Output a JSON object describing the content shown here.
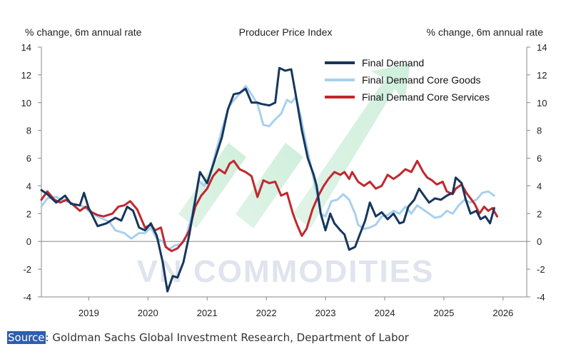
{
  "chart_data": {
    "type": "line",
    "title": "Producer Price Index",
    "ylabel_left": "% change, 6m annual rate",
    "ylabel_right": "% change, 6m annual rate",
    "xlim": [
      2018.2,
      2026.4
    ],
    "ylim": [
      -4,
      14
    ],
    "y_ticks": [
      -4,
      -2,
      0,
      2,
      4,
      6,
      8,
      10,
      12,
      14
    ],
    "x_ticks": [
      2019,
      2020,
      2021,
      2022,
      2023,
      2024,
      2025,
      2026
    ],
    "x_tick_labels": [
      "2019",
      "2020",
      "2021",
      "2022",
      "2023",
      "2024",
      "2025",
      "2026"
    ],
    "grid": false,
    "zero_line": true,
    "legend_position": "top-center",
    "series": [
      {
        "name": "Final Demand",
        "color": "#16365c",
        "points": [
          [
            2018.2,
            3.7
          ],
          [
            2018.3,
            3.4
          ],
          [
            2018.45,
            2.8
          ],
          [
            2018.6,
            3.3
          ],
          [
            2018.7,
            2.7
          ],
          [
            2018.85,
            2.6
          ],
          [
            2018.92,
            3.5
          ],
          [
            2019.0,
            2.4
          ],
          [
            2019.15,
            1.1
          ],
          [
            2019.3,
            1.3
          ],
          [
            2019.45,
            1.7
          ],
          [
            2019.55,
            1.5
          ],
          [
            2019.65,
            2.5
          ],
          [
            2019.75,
            2.2
          ],
          [
            2019.85,
            1.0
          ],
          [
            2019.95,
            0.8
          ],
          [
            2020.05,
            1.3
          ],
          [
            2020.15,
            0.4
          ],
          [
            2020.25,
            -1.5
          ],
          [
            2020.33,
            -3.6
          ],
          [
            2020.42,
            -2.5
          ],
          [
            2020.5,
            -2.6
          ],
          [
            2020.6,
            -1.5
          ],
          [
            2020.7,
            0.5
          ],
          [
            2020.8,
            3.0
          ],
          [
            2020.88,
            5.0
          ],
          [
            2021.0,
            4.2
          ],
          [
            2021.1,
            5.5
          ],
          [
            2021.25,
            7.5
          ],
          [
            2021.35,
            9.5
          ],
          [
            2021.45,
            10.6
          ],
          [
            2021.55,
            10.7
          ],
          [
            2021.65,
            11.0
          ],
          [
            2021.75,
            10.0
          ],
          [
            2021.85,
            10.0
          ],
          [
            2021.92,
            9.9
          ],
          [
            2022.05,
            9.8
          ],
          [
            2022.15,
            10.0
          ],
          [
            2022.22,
            12.5
          ],
          [
            2022.32,
            12.3
          ],
          [
            2022.42,
            12.4
          ],
          [
            2022.5,
            10.5
          ],
          [
            2022.6,
            8.0
          ],
          [
            2022.7,
            6.0
          ],
          [
            2022.8,
            4.8
          ],
          [
            2022.85,
            4.0
          ],
          [
            2022.92,
            2.0
          ],
          [
            2023.0,
            0.8
          ],
          [
            2023.08,
            2.0
          ],
          [
            2023.15,
            1.3
          ],
          [
            2023.25,
            0.8
          ],
          [
            2023.32,
            0.5
          ],
          [
            2023.4,
            -0.6
          ],
          [
            2023.5,
            -0.4
          ],
          [
            2023.58,
            0.5
          ],
          [
            2023.67,
            1.5
          ],
          [
            2023.75,
            2.8
          ],
          [
            2023.85,
            1.8
          ],
          [
            2023.95,
            2.1
          ],
          [
            2024.05,
            1.6
          ],
          [
            2024.15,
            2.0
          ],
          [
            2024.25,
            1.3
          ],
          [
            2024.32,
            1.4
          ],
          [
            2024.4,
            2.5
          ],
          [
            2024.5,
            3.0
          ],
          [
            2024.58,
            3.8
          ],
          [
            2024.68,
            3.2
          ],
          [
            2024.75,
            2.8
          ],
          [
            2024.85,
            3.1
          ],
          [
            2024.95,
            3.0
          ],
          [
            2025.05,
            3.3
          ],
          [
            2025.15,
            3.5
          ],
          [
            2025.2,
            4.6
          ],
          [
            2025.3,
            4.2
          ],
          [
            2025.37,
            3.0
          ],
          [
            2025.45,
            2.0
          ],
          [
            2025.55,
            2.2
          ],
          [
            2025.62,
            1.6
          ],
          [
            2025.7,
            1.8
          ],
          [
            2025.78,
            1.3
          ],
          [
            2025.85,
            2.4
          ]
        ]
      },
      {
        "name": "Final Demand Core Goods",
        "color": "#a8d0ee",
        "points": [
          [
            2018.2,
            2.5
          ],
          [
            2018.3,
            3.1
          ],
          [
            2018.45,
            3.2
          ],
          [
            2018.6,
            2.9
          ],
          [
            2018.75,
            2.7
          ],
          [
            2018.92,
            2.5
          ],
          [
            2019.05,
            2.0
          ],
          [
            2019.2,
            1.7
          ],
          [
            2019.35,
            1.4
          ],
          [
            2019.45,
            0.8
          ],
          [
            2019.6,
            0.6
          ],
          [
            2019.72,
            0.2
          ],
          [
            2019.85,
            0.6
          ],
          [
            2019.95,
            0.6
          ],
          [
            2020.05,
            1.0
          ],
          [
            2020.15,
            0.2
          ],
          [
            2020.25,
            0.0
          ],
          [
            2020.35,
            -0.6
          ],
          [
            2020.45,
            -0.3
          ],
          [
            2020.55,
            -0.2
          ],
          [
            2020.65,
            0.4
          ],
          [
            2020.75,
            2.0
          ],
          [
            2020.85,
            4.4
          ],
          [
            2020.95,
            4.0
          ],
          [
            2021.05,
            4.8
          ],
          [
            2021.15,
            6.5
          ],
          [
            2021.28,
            8.5
          ],
          [
            2021.38,
            9.8
          ],
          [
            2021.48,
            10.3
          ],
          [
            2021.58,
            10.8
          ],
          [
            2021.65,
            11.2
          ],
          [
            2021.75,
            10.6
          ],
          [
            2021.85,
            9.9
          ],
          [
            2021.95,
            8.4
          ],
          [
            2022.05,
            8.3
          ],
          [
            2022.15,
            8.8
          ],
          [
            2022.25,
            9.2
          ],
          [
            2022.35,
            10.2
          ],
          [
            2022.42,
            10.0
          ],
          [
            2022.5,
            10.4
          ],
          [
            2022.58,
            9.0
          ],
          [
            2022.65,
            7.5
          ],
          [
            2022.75,
            5.5
          ],
          [
            2022.85,
            3.5
          ],
          [
            2022.92,
            2.0
          ],
          [
            2023.0,
            1.8
          ],
          [
            2023.1,
            2.9
          ],
          [
            2023.2,
            3.0
          ],
          [
            2023.3,
            3.4
          ],
          [
            2023.4,
            3.0
          ],
          [
            2023.5,
            2.0
          ],
          [
            2023.55,
            1.2
          ],
          [
            2023.65,
            0.9
          ],
          [
            2023.75,
            1.0
          ],
          [
            2023.85,
            1.2
          ],
          [
            2023.95,
            1.8
          ],
          [
            2024.05,
            1.9
          ],
          [
            2024.15,
            2.2
          ],
          [
            2024.25,
            2.0
          ],
          [
            2024.35,
            2.5
          ],
          [
            2024.45,
            2.0
          ],
          [
            2024.55,
            2.6
          ],
          [
            2024.65,
            2.3
          ],
          [
            2024.75,
            2.0
          ],
          [
            2024.85,
            1.7
          ],
          [
            2024.95,
            1.8
          ],
          [
            2025.05,
            2.2
          ],
          [
            2025.15,
            2.0
          ],
          [
            2025.25,
            2.6
          ],
          [
            2025.35,
            3.0
          ],
          [
            2025.45,
            2.8
          ],
          [
            2025.55,
            3.0
          ],
          [
            2025.65,
            3.5
          ],
          [
            2025.75,
            3.6
          ],
          [
            2025.85,
            3.3
          ]
        ]
      },
      {
        "name": "Final Demand Core Services",
        "color": "#c1272d",
        "points": [
          [
            2018.2,
            3.0
          ],
          [
            2018.3,
            3.6
          ],
          [
            2018.42,
            3.0
          ],
          [
            2018.52,
            2.8
          ],
          [
            2018.62,
            3.0
          ],
          [
            2018.72,
            2.7
          ],
          [
            2018.85,
            2.2
          ],
          [
            2018.95,
            2.5
          ],
          [
            2019.05,
            2.1
          ],
          [
            2019.15,
            1.9
          ],
          [
            2019.25,
            1.8
          ],
          [
            2019.4,
            2.0
          ],
          [
            2019.5,
            2.5
          ],
          [
            2019.6,
            2.6
          ],
          [
            2019.7,
            2.9
          ],
          [
            2019.82,
            2.3
          ],
          [
            2019.9,
            1.5
          ],
          [
            2019.95,
            1.0
          ],
          [
            2020.05,
            1.2
          ],
          [
            2020.12,
            0.8
          ],
          [
            2020.22,
            1.0
          ],
          [
            2020.3,
            -0.4
          ],
          [
            2020.4,
            -0.7
          ],
          [
            2020.5,
            -0.5
          ],
          [
            2020.6,
            0.0
          ],
          [
            2020.7,
            0.8
          ],
          [
            2020.8,
            2.5
          ],
          [
            2020.9,
            3.3
          ],
          [
            2021.0,
            3.8
          ],
          [
            2021.1,
            4.7
          ],
          [
            2021.2,
            5.2
          ],
          [
            2021.3,
            4.9
          ],
          [
            2021.38,
            5.6
          ],
          [
            2021.45,
            5.8
          ],
          [
            2021.55,
            5.2
          ],
          [
            2021.65,
            5.0
          ],
          [
            2021.75,
            4.7
          ],
          [
            2021.85,
            3.2
          ],
          [
            2021.95,
            4.4
          ],
          [
            2022.05,
            4.2
          ],
          [
            2022.15,
            4.3
          ],
          [
            2022.25,
            3.3
          ],
          [
            2022.35,
            3.5
          ],
          [
            2022.45,
            2.0
          ],
          [
            2022.52,
            1.2
          ],
          [
            2022.6,
            0.4
          ],
          [
            2022.68,
            0.9
          ],
          [
            2022.78,
            2.3
          ],
          [
            2022.88,
            3.3
          ],
          [
            2022.97,
            4.0
          ],
          [
            2023.05,
            4.5
          ],
          [
            2023.15,
            5.0
          ],
          [
            2023.25,
            4.8
          ],
          [
            2023.32,
            5.0
          ],
          [
            2023.4,
            4.5
          ],
          [
            2023.45,
            5.0
          ],
          [
            2023.55,
            4.3
          ],
          [
            2023.65,
            4.0
          ],
          [
            2023.75,
            4.3
          ],
          [
            2023.85,
            3.8
          ],
          [
            2023.95,
            4.0
          ],
          [
            2024.05,
            4.8
          ],
          [
            2024.15,
            4.5
          ],
          [
            2024.25,
            4.8
          ],
          [
            2024.35,
            5.2
          ],
          [
            2024.45,
            5.0
          ],
          [
            2024.55,
            5.8
          ],
          [
            2024.65,
            5.0
          ],
          [
            2024.72,
            4.6
          ],
          [
            2024.8,
            4.4
          ],
          [
            2024.88,
            4.1
          ],
          [
            2024.98,
            4.3
          ],
          [
            2025.05,
            3.6
          ],
          [
            2025.15,
            3.4
          ],
          [
            2025.2,
            3.8
          ],
          [
            2025.3,
            4.1
          ],
          [
            2025.38,
            3.5
          ],
          [
            2025.45,
            3.1
          ],
          [
            2025.52,
            2.7
          ],
          [
            2025.6,
            2.0
          ],
          [
            2025.68,
            2.5
          ],
          [
            2025.75,
            2.2
          ],
          [
            2025.82,
            2.4
          ],
          [
            2025.9,
            1.8
          ]
        ]
      }
    ]
  },
  "watermark": "VN COMMODITIES",
  "source": {
    "label": "Source",
    "text": ": Goldman Sachs Global Investment Research, Department of Labor"
  }
}
